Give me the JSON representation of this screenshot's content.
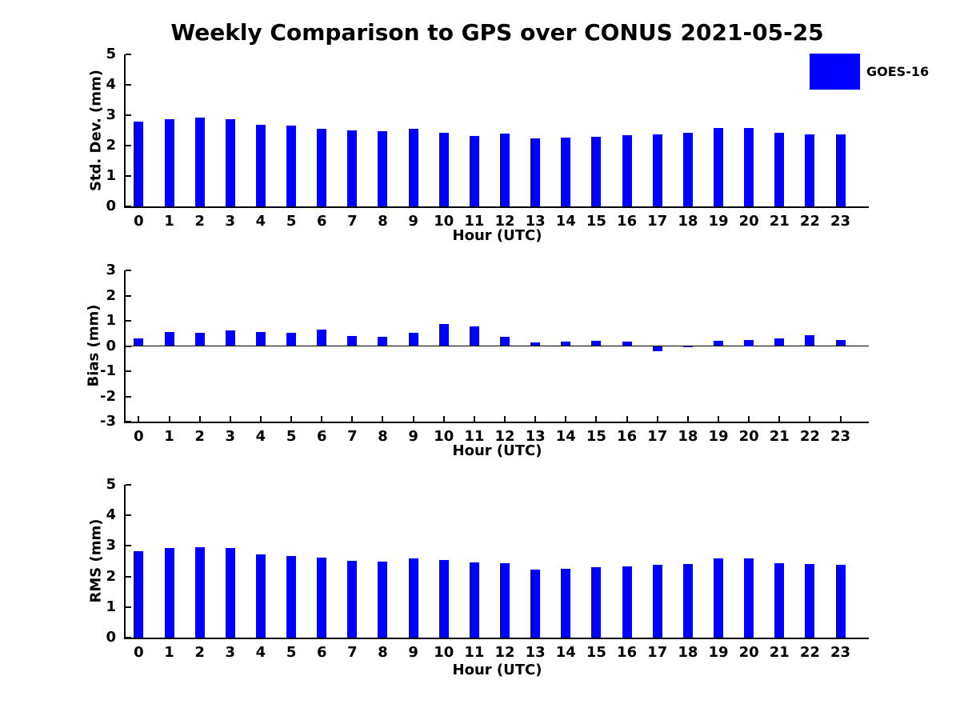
{
  "figure": {
    "title": "Weekly Comparison to GPS over CONUS 2021-05-25"
  },
  "legend": {
    "label": "GOES-16",
    "color": "#0000ff",
    "position": "top-right"
  },
  "chart_data": [
    {
      "type": "bar",
      "series_name": "GOES-16",
      "bar_color": "#0000ff",
      "title": "",
      "xlabel": "Hour (UTC)",
      "ylabel": "Std. Dev. (mm)",
      "categories": [
        0,
        1,
        2,
        3,
        4,
        5,
        6,
        7,
        8,
        9,
        10,
        11,
        12,
        13,
        14,
        15,
        16,
        17,
        18,
        19,
        20,
        21,
        22,
        23
      ],
      "values": [
        2.8,
        2.88,
        2.93,
        2.88,
        2.68,
        2.65,
        2.56,
        2.51,
        2.48,
        2.54,
        2.41,
        2.32,
        2.4,
        2.23,
        2.26,
        2.3,
        2.33,
        2.37,
        2.43,
        2.59,
        2.58,
        2.43,
        2.36,
        2.37
      ],
      "ylim": [
        0,
        5
      ],
      "yticks": [
        0,
        1,
        2,
        3,
        4,
        5
      ],
      "xlim": [
        -0.43,
        23.93
      ],
      "grid": false
    },
    {
      "type": "bar",
      "series_name": "GOES-16",
      "bar_color": "#0000ff",
      "title": "",
      "xlabel": "Hour (UTC)",
      "ylabel": "Bias (mm)",
      "categories": [
        0,
        1,
        2,
        3,
        4,
        5,
        6,
        7,
        8,
        9,
        10,
        11,
        12,
        13,
        14,
        15,
        16,
        17,
        18,
        19,
        20,
        21,
        22,
        23
      ],
      "values": [
        0.3,
        0.56,
        0.53,
        0.62,
        0.56,
        0.53,
        0.65,
        0.4,
        0.37,
        0.53,
        0.88,
        0.79,
        0.36,
        0.13,
        0.16,
        0.22,
        0.17,
        -0.2,
        -0.04,
        0.21,
        0.25,
        0.29,
        0.43,
        0.23
      ],
      "ylim": [
        -3,
        3
      ],
      "yticks": [
        3,
        2,
        1,
        0,
        -1,
        -2,
        -3
      ],
      "xlim": [
        -0.43,
        23.93
      ],
      "grid": false,
      "zero_line": true
    },
    {
      "type": "bar",
      "series_name": "GOES-16",
      "bar_color": "#0000ff",
      "title": "",
      "xlabel": "Hour (UTC)",
      "ylabel": "RMS (mm)",
      "categories": [
        0,
        1,
        2,
        3,
        4,
        5,
        6,
        7,
        8,
        9,
        10,
        11,
        12,
        13,
        14,
        15,
        16,
        17,
        18,
        19,
        20,
        21,
        22,
        23
      ],
      "values": [
        2.82,
        2.94,
        2.97,
        2.92,
        2.71,
        2.68,
        2.63,
        2.52,
        2.5,
        2.6,
        2.55,
        2.45,
        2.44,
        2.22,
        2.25,
        2.31,
        2.34,
        2.38,
        2.41,
        2.6,
        2.6,
        2.44,
        2.41,
        2.38
      ],
      "ylim": [
        0,
        5
      ],
      "yticks": [
        0,
        1,
        2,
        3,
        4,
        5
      ],
      "xlim": [
        -0.43,
        23.93
      ],
      "grid": false
    }
  ]
}
